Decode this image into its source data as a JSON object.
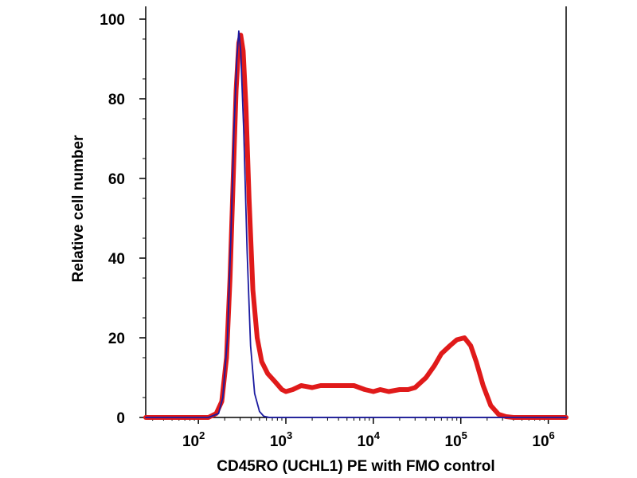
{
  "chart_data": {
    "type": "line",
    "title": "",
    "xlabel": "CD45RO (UCHL1) PE with FMO control",
    "ylabel": "Relative cell number",
    "x_scale": "log",
    "xlim": [
      25,
      1600000
    ],
    "ylim": [
      0,
      100
    ],
    "x_ticks": [
      {
        "value": 100,
        "base": "10",
        "exp": "2"
      },
      {
        "value": 1000,
        "base": "10",
        "exp": "3"
      },
      {
        "value": 10000,
        "base": "10",
        "exp": "4"
      },
      {
        "value": 100000,
        "base": "10",
        "exp": "5"
      },
      {
        "value": 1000000,
        "base": "10",
        "exp": "6"
      }
    ],
    "y_ticks": [
      "0",
      "20",
      "40",
      "60",
      "80",
      "100"
    ],
    "grid": false,
    "series": [
      {
        "color": "#1a1aa0",
        "points": [
          [
            25,
            0
          ],
          [
            130,
            0
          ],
          [
            170,
            1
          ],
          [
            190,
            5
          ],
          [
            215,
            20
          ],
          [
            235,
            45
          ],
          [
            255,
            72
          ],
          [
            275,
            90
          ],
          [
            290,
            97
          ],
          [
            305,
            92
          ],
          [
            330,
            72
          ],
          [
            360,
            42
          ],
          [
            395,
            18
          ],
          [
            440,
            6
          ],
          [
            500,
            1.5
          ],
          [
            560,
            0.3
          ],
          [
            650,
            0
          ],
          [
            1600000,
            0
          ]
        ]
      },
      {
        "color": "#e01a1a",
        "points": [
          [
            25,
            0
          ],
          [
            130,
            0
          ],
          [
            160,
            1
          ],
          [
            185,
            4
          ],
          [
            210,
            15
          ],
          [
            230,
            35
          ],
          [
            250,
            60
          ],
          [
            270,
            82
          ],
          [
            290,
            94
          ],
          [
            305,
            96
          ],
          [
            325,
            92
          ],
          [
            350,
            78
          ],
          [
            380,
            55
          ],
          [
            420,
            32
          ],
          [
            470,
            20
          ],
          [
            530,
            14
          ],
          [
            620,
            11
          ],
          [
            750,
            9
          ],
          [
            900,
            7
          ],
          [
            1000,
            6.5
          ],
          [
            1200,
            7
          ],
          [
            1500,
            8
          ],
          [
            2000,
            7.5
          ],
          [
            2500,
            8
          ],
          [
            3000,
            8
          ],
          [
            4000,
            8
          ],
          [
            5000,
            8
          ],
          [
            6000,
            8
          ],
          [
            8000,
            7
          ],
          [
            10000,
            6.5
          ],
          [
            12000,
            7
          ],
          [
            15000,
            6.5
          ],
          [
            20000,
            7
          ],
          [
            25000,
            7
          ],
          [
            30000,
            7.5
          ],
          [
            40000,
            10
          ],
          [
            50000,
            13
          ],
          [
            60000,
            16
          ],
          [
            75000,
            18
          ],
          [
            90000,
            19.5
          ],
          [
            110000,
            20
          ],
          [
            130000,
            18
          ],
          [
            150000,
            14
          ],
          [
            180000,
            8
          ],
          [
            220000,
            3
          ],
          [
            270000,
            0.8
          ],
          [
            330000,
            0.2
          ],
          [
            400000,
            0
          ],
          [
            1600000,
            0
          ]
        ]
      }
    ]
  }
}
